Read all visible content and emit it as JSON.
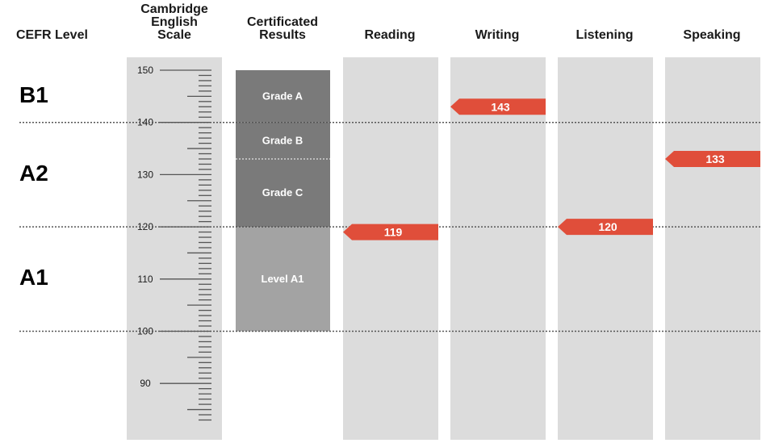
{
  "headers": {
    "cefr": "CEFR Level",
    "scale": [
      "Cambridge",
      "English",
      "Scale"
    ],
    "results": [
      "Certificated",
      "Results"
    ]
  },
  "cefr_levels": [
    {
      "label": "B1",
      "y": 145
    },
    {
      "label": "A2",
      "y": 130
    },
    {
      "label": "A1",
      "y": 110
    }
  ],
  "chart_data": {
    "type": "bar",
    "scale": {
      "min": 83,
      "max": 150,
      "labeled_ticks": [
        150,
        140,
        130,
        120,
        110,
        100,
        90
      ]
    },
    "boundaries": [
      140,
      120,
      100
    ],
    "grades": [
      {
        "label": "Grade A",
        "from": 140,
        "to": 150
      },
      {
        "label": "Grade B",
        "from": 133,
        "to": 140
      },
      {
        "label": "Grade C",
        "from": 120,
        "to": 133
      },
      {
        "label": "Level A1",
        "from": 100,
        "to": 120
      }
    ],
    "categories": [
      "Reading",
      "Writing",
      "Listening",
      "Speaking"
    ],
    "values": [
      119,
      143,
      120,
      133
    ],
    "colors": {
      "marker": "#e04e3a",
      "column": "#dcdcdc",
      "grade_dark": "#7a7a7a",
      "grade_light": "#a3a3a3",
      "dotted_line": "#555555"
    }
  }
}
